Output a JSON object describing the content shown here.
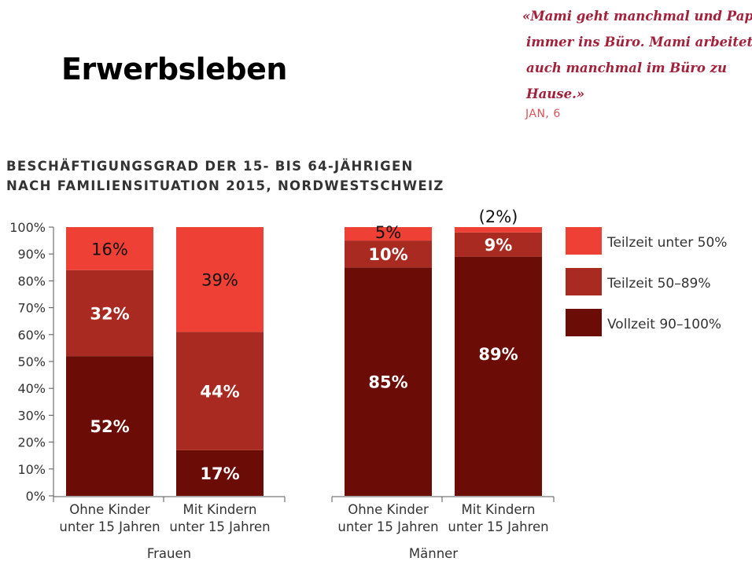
{
  "page_title": "Erwerbsleben",
  "quote": {
    "lines": [
      "«Mami geht manchmal und Papi",
      "immer ins Büro. Mami arbeitet",
      "auch manchmal im Büro zu",
      "Hause.»"
    ],
    "author": "JAN, 6"
  },
  "chart_data": {
    "type": "bar",
    "stacked": true,
    "title_lines": [
      "BESCHÄFTIGUNGSGRAD DER 15- BIS 64-JÄHRIGEN",
      "NACH FAMILIENSITUATION 2015, NORDWESTSCHWEIZ"
    ],
    "groups": [
      "Frauen",
      "Männer"
    ],
    "categories": [
      {
        "label": [
          "Ohne Kinder",
          "unter 15 Jahren"
        ],
        "group": "Frauen"
      },
      {
        "label": [
          "Mit Kindern",
          "unter 15 Jahren"
        ],
        "group": "Frauen"
      },
      {
        "label": [
          "Ohne Kinder",
          "unter 15 Jahren"
        ],
        "group": "Männer"
      },
      {
        "label": [
          "Mit Kindern",
          "unter 15 Jahren"
        ],
        "group": "Männer"
      }
    ],
    "series": [
      {
        "name": "Vollzeit 90–100%",
        "color": "#6b0c06",
        "values": [
          52,
          17,
          85,
          89
        ],
        "labels": [
          "52%",
          "17%",
          "85%",
          "89%"
        ]
      },
      {
        "name": "Teilzeit 50–89%",
        "color": "#a92a21",
        "values": [
          32,
          44,
          10,
          9
        ],
        "labels": [
          "32%",
          "44%",
          "10%",
          "9%"
        ]
      },
      {
        "name": "Teilzeit unter 50%",
        "color": "#ee4035",
        "values": [
          16,
          39,
          5,
          2
        ],
        "labels": [
          "16%",
          "39%",
          "5%",
          "(2%)"
        ]
      }
    ],
    "legend_order": [
      "Teilzeit unter 50%",
      "Teilzeit 50–89%",
      "Vollzeit 90–100%"
    ],
    "legend_position": "right",
    "y_ticks": [
      "0%",
      "10%",
      "20%",
      "30%",
      "40%",
      "50%",
      "60%",
      "70%",
      "80%",
      "90%",
      "100%"
    ],
    "ylim": [
      0,
      100
    ],
    "grid": false
  }
}
